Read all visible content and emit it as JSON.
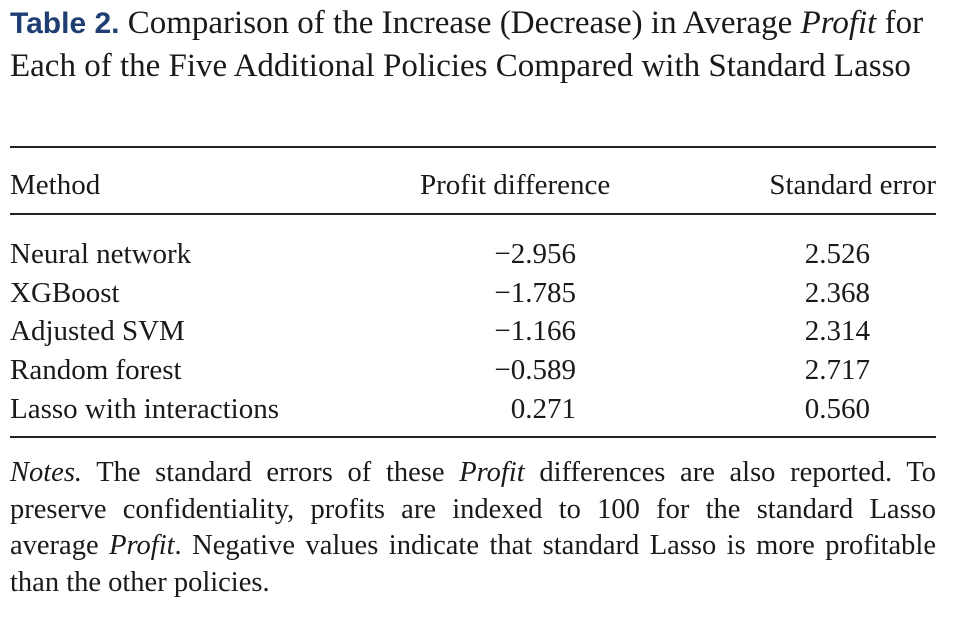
{
  "caption": {
    "label": "Table 2.",
    "text_part1": "Comparison of the Increase (Decrease) in Average",
    "italic_word": "Profit",
    "text_part2": "for Each of the Five Additional Policies Compared with Standard Lasso"
  },
  "table": {
    "headers": [
      "Method",
      "Profit difference",
      "Standard error"
    ],
    "rows": [
      [
        "Neural network",
        "−2.956",
        "2.526"
      ],
      [
        "XGBoost",
        "−1.785",
        "2.368"
      ],
      [
        "Adjusted SVM",
        "−1.166",
        "2.314"
      ],
      [
        "Random forest",
        "−0.589",
        "2.717"
      ],
      [
        "Lasso with interactions",
        "0.271",
        "0.560"
      ]
    ]
  },
  "notes": {
    "label": "Notes.",
    "part1": "The standard errors of these",
    "italic1": "Profit",
    "part2": "differences are also reported. To preserve confidentiality, profits are indexed to 100 for the standard Lasso average",
    "italic2": "Profit",
    "part3": ". Negative values indicate that standard Lasso is more profitable than the other policies."
  }
}
